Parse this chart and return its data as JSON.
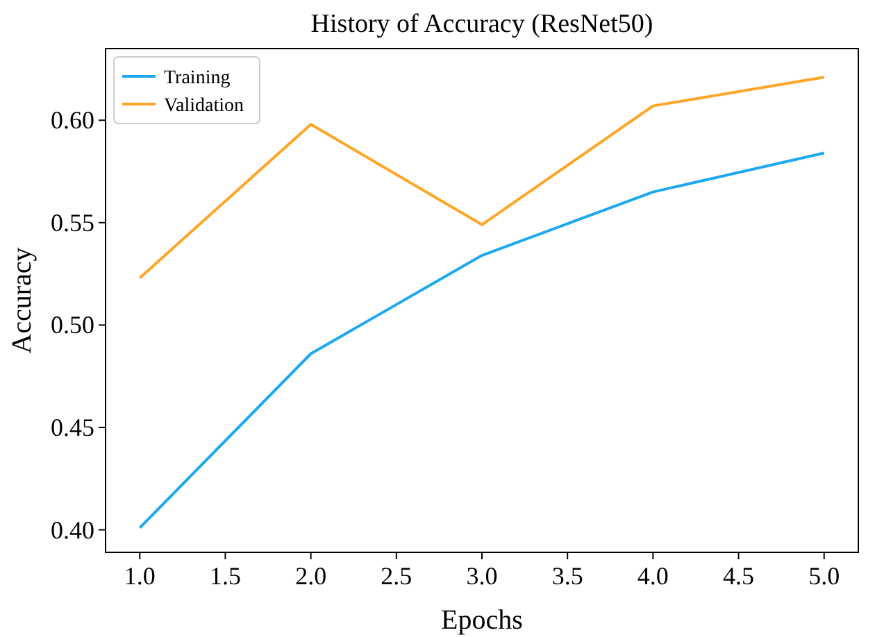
{
  "chart_data": {
    "type": "line",
    "title": "History of Accuracy (ResNet50)",
    "xlabel": "Epochs",
    "ylabel": "Accuracy",
    "x": [
      1,
      2,
      3,
      4,
      5
    ],
    "series": [
      {
        "name": "Training",
        "color": "#1ea8f0",
        "values": [
          0.401,
          0.486,
          0.534,
          0.565,
          0.584
        ]
      },
      {
        "name": "Validation",
        "color": "#ffa526",
        "values": [
          0.523,
          0.598,
          0.549,
          0.607,
          0.621
        ]
      }
    ],
    "xlim": [
      0.8,
      5.2
    ],
    "xticks": [
      {
        "value": 1,
        "label": "1.0"
      },
      {
        "value": 1.5,
        "label": "1.5"
      },
      {
        "value": 2,
        "label": "2.0"
      },
      {
        "value": 2.5,
        "label": "2.5"
      },
      {
        "value": 3,
        "label": "3.0"
      },
      {
        "value": 3.5,
        "label": "3.5"
      },
      {
        "value": 4,
        "label": "4.0"
      },
      {
        "value": 4.5,
        "label": "4.5"
      },
      {
        "value": 5,
        "label": "5.0"
      }
    ],
    "ylim": [
      0.389,
      0.635
    ],
    "yticks": [
      {
        "value": 0.4,
        "label": "0.40"
      },
      {
        "value": 0.45,
        "label": "0.45"
      },
      {
        "value": 0.5,
        "label": "0.50"
      },
      {
        "value": 0.55,
        "label": "0.55"
      },
      {
        "value": 0.6,
        "label": "0.60"
      }
    ],
    "legend": "top left",
    "grid": false,
    "line_style": "solid"
  }
}
